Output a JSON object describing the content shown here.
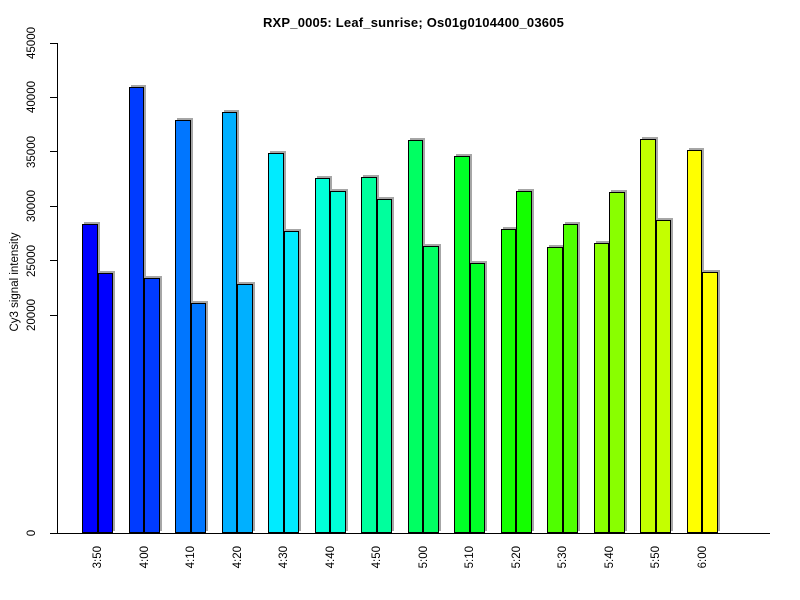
{
  "title": "RXP_0005: Leaf_sunrise; Os01g0104400_03605",
  "chart_data": {
    "type": "bar",
    "title": "RXP_0005: Leaf_sunrise; Os01g0104400_03605",
    "xlabel": "",
    "ylabel": "Cy3 signal intensity",
    "categories": [
      "3:50",
      "4:00",
      "4:10",
      "4:20",
      "4:30",
      "4:40",
      "4:50",
      "5:00",
      "5:10",
      "5:20",
      "5:30",
      "5:40",
      "5:50",
      "6:00"
    ],
    "series": [
      {
        "name": "left-bar",
        "values": [
          28400,
          41000,
          37900,
          38700,
          34900,
          32600,
          32700,
          36100,
          34600,
          27900,
          26300,
          26600,
          36200,
          35200
        ]
      },
      {
        "name": "right-bar",
        "values": [
          23900,
          23400,
          21100,
          22900,
          27700,
          31400,
          30700,
          26400,
          24800,
          31400,
          28400,
          31300,
          28700,
          24000
        ]
      }
    ],
    "bar_colors": [
      "#0000FF",
      "#003BFF",
      "#0076FF",
      "#00B0FF",
      "#00EBFF",
      "#00FFD8",
      "#00FF9D",
      "#00FF62",
      "#00FF27",
      "#14FF00",
      "#4FFF00",
      "#89FF00",
      "#C4FF00",
      "#FFFF00"
    ],
    "yticks": [
      0,
      20000,
      25000,
      30000,
      35000,
      40000,
      45000
    ],
    "ylim": [
      0,
      45000
    ],
    "grid": false,
    "legend": "none",
    "bar_border_color": "#000000",
    "bar_shadow_color": "#a6a6a6",
    "axis_color": "#000000"
  }
}
